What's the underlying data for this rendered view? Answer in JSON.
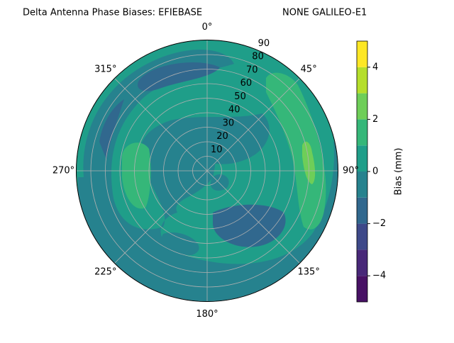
{
  "chart_data": {
    "type": "polar_contour",
    "title": "Delta Antenna Phase Biases: EFIEBASE",
    "subtitle": "NONE GALILEO-E1",
    "rlim": [
      0,
      90
    ],
    "rticks": [
      10,
      20,
      30,
      40,
      50,
      60,
      70,
      80,
      90
    ],
    "thetaticks": [
      {
        "value": 0,
        "label": "0°"
      },
      {
        "value": 45,
        "label": "45°"
      },
      {
        "value": 90,
        "label": "90°"
      },
      {
        "value": 135,
        "label": "135°"
      },
      {
        "value": 180,
        "label": "180°"
      },
      {
        "value": 225,
        "label": "225°"
      },
      {
        "value": 270,
        "label": "270°"
      },
      {
        "value": 315,
        "label": "315°"
      }
    ],
    "grid": true,
    "levels": [
      -5,
      -4,
      -3,
      -2,
      -1,
      0,
      1,
      2,
      3,
      4,
      5
    ],
    "colors": [
      "#471164",
      "#482878",
      "#3e4989",
      "#31688e",
      "#26828e",
      "#1f9e89",
      "#35b779",
      "#6ece58",
      "#b5de2b",
      "#fde725"
    ],
    "colorbar_label": "Bias (mm)",
    "colorbar_ticks": [
      {
        "value": -4,
        "label": "−4"
      },
      {
        "value": -2,
        "label": "−2"
      },
      0,
      2,
      4
    ]
  }
}
